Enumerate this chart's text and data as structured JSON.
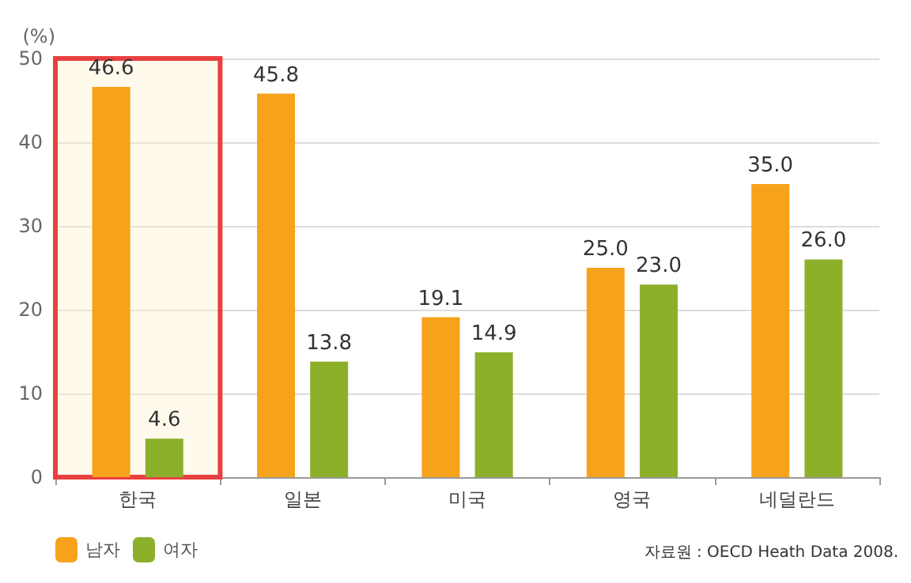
{
  "chart_data": {
    "type": "bar",
    "ylabel": "(%)",
    "categories": [
      "한국",
      "일본",
      "미국",
      "영국",
      "네덜란드"
    ],
    "series": [
      {
        "name": "남자",
        "color": "#f7a21b",
        "values": [
          46.6,
          45.8,
          19.1,
          25.0,
          35.0
        ],
        "value_labels": [
          "46.6",
          "45.8",
          "19.1",
          "25.0",
          "35.0"
        ]
      },
      {
        "name": "여자",
        "color": "#8db02a",
        "values": [
          4.6,
          13.8,
          14.9,
          23.0,
          26.0
        ],
        "value_labels": [
          "4.6",
          "13.8",
          "14.9",
          "23.0",
          "26.0"
        ]
      }
    ],
    "ylim": [
      0,
      50
    ],
    "yticks": [
      0,
      10,
      20,
      30,
      40,
      50
    ],
    "grid": "y",
    "legend": "bottom left",
    "bands": [
      {
        "axis": "x",
        "from": "한국",
        "to": "한국",
        "color": "#e8403f"
      }
    ],
    "annotations": [
      "자료원 : OECD Heath Data 2008."
    ]
  }
}
